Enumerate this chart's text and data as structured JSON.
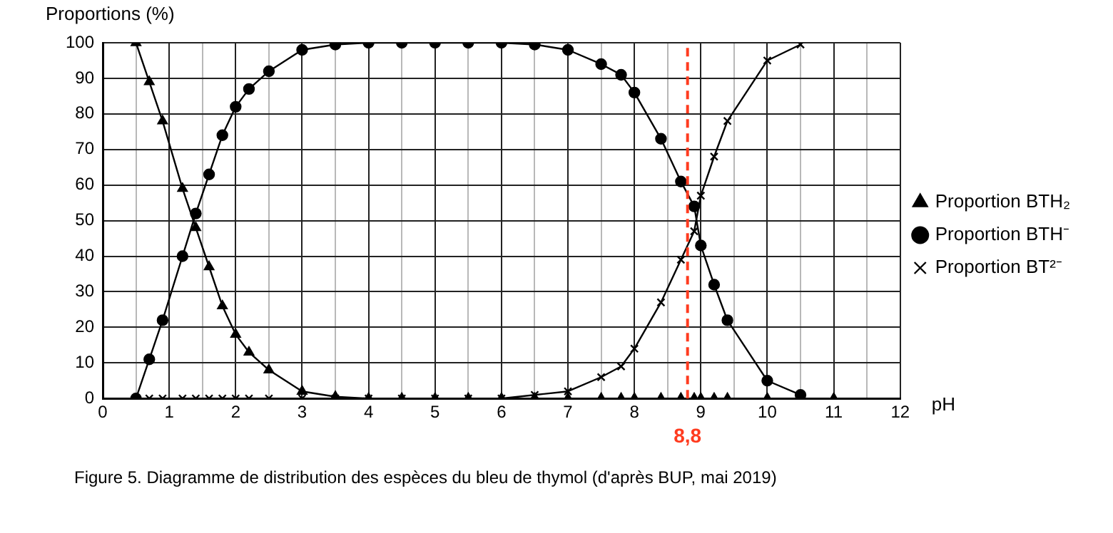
{
  "chart_data": {
    "type": "line",
    "xlabel": "pH",
    "ylabel": "Proportions (%)",
    "xlim": [
      0,
      12
    ],
    "ylim": [
      0,
      100
    ],
    "xticks": [
      0,
      {
        "value": 0.5,
        "label": null
      },
      1,
      {
        "value": 1.5,
        "label": null
      },
      2,
      {
        "value": 2.5,
        "label": null
      },
      3,
      {
        "value": 3.5,
        "label": null
      },
      4,
      {
        "value": 4.5,
        "label": null
      },
      5,
      {
        "value": 5.5,
        "label": null
      },
      6,
      {
        "value": 6.5,
        "label": null
      },
      7,
      {
        "value": 7.5,
        "label": null
      },
      8,
      {
        "value": 8.5,
        "label": null
      },
      9,
      {
        "value": 9.5,
        "label": null
      },
      10,
      {
        "value": 10.5,
        "label": null
      },
      11,
      {
        "value": 11.5,
        "label": null
      },
      12
    ],
    "yticks": [
      0,
      10,
      20,
      30,
      40,
      50,
      60,
      70,
      80,
      90,
      100
    ],
    "grid": true,
    "legend": "right",
    "line_style": "solid",
    "series": [
      {
        "name": "Proportion BTH₂",
        "color": "#000000",
        "marker": "triangle",
        "x": [
          0.5,
          0.7,
          0.9,
          1.2,
          1.4,
          1.6,
          1.8,
          2,
          2.2,
          2.5,
          3,
          3.5,
          4,
          4.5,
          5,
          5.5,
          6,
          6.5,
          7,
          7.5,
          7.8,
          8,
          8.4,
          8.7,
          8.9,
          9,
          9.2,
          9.4,
          10,
          10.5,
          11
        ],
        "values": [
          100,
          89,
          78,
          59,
          48,
          37,
          26,
          18,
          13,
          8,
          2,
          0.5,
          0,
          0,
          0,
          0,
          0,
          0,
          0,
          0,
          0,
          0,
          0,
          0,
          0,
          0,
          0,
          0,
          0,
          0,
          0
        ]
      },
      {
        "name": "Proportion BTH⁻",
        "color": "#000000",
        "marker": "circle",
        "x": [
          0.5,
          0.7,
          0.9,
          1.2,
          1.4,
          1.6,
          1.8,
          2,
          2.2,
          2.5,
          3,
          3.5,
          4,
          4.5,
          5,
          5.5,
          6,
          6.5,
          7,
          7.5,
          7.8,
          8,
          8.4,
          8.7,
          8.9,
          9,
          9.2,
          9.4,
          10,
          10.5
        ],
        "values": [
          0,
          11,
          22,
          40,
          52,
          63,
          74,
          82,
          87,
          92,
          98,
          99.5,
          100,
          100,
          100,
          100,
          100,
          99.5,
          98,
          94,
          91,
          86,
          73,
          61,
          54,
          43,
          32,
          22,
          5,
          1
        ]
      },
      {
        "name": "Proportion BT²⁻",
        "color": "#000000",
        "marker": "cross",
        "x": [
          0.7,
          0.9,
          1.2,
          1.4,
          1.6,
          1.8,
          2,
          2.2,
          2.5,
          3,
          3.5,
          4,
          4.5,
          5,
          5.5,
          6,
          6.5,
          7,
          7.5,
          7.8,
          8,
          8.4,
          8.7,
          8.9,
          9,
          9.2,
          9.4,
          10,
          10.5
        ],
        "values": [
          0,
          0,
          0,
          0,
          0,
          0,
          0,
          0,
          0,
          0,
          0,
          0,
          0,
          0,
          0,
          0,
          1,
          2,
          6,
          9,
          14,
          27,
          39,
          47,
          57,
          68,
          78,
          95,
          99.5
        ]
      }
    ],
    "ref_lines": [
      {
        "axis": "x",
        "value": 8.8,
        "label": "8,8",
        "color": "#ff3b1f",
        "line_style": "dashed"
      }
    ],
    "annotations": [
      "Figure 5. Diagramme de distribution des espèces du bleu de thymol (d'après BUP, mai 2019)"
    ]
  }
}
